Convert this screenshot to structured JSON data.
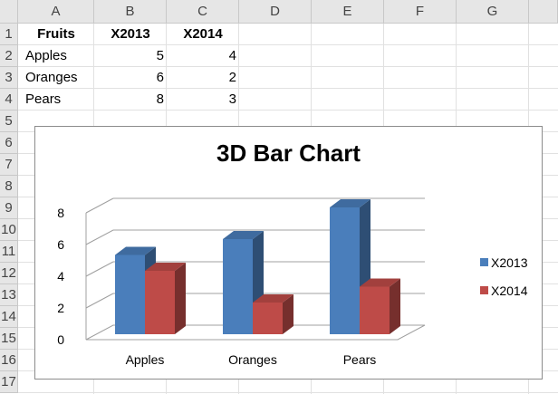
{
  "sheet": {
    "columns": [
      "A",
      "B",
      "C",
      "D",
      "E",
      "F",
      "G"
    ],
    "rows": [
      "1",
      "2",
      "3",
      "4",
      "5",
      "6",
      "7",
      "8",
      "9",
      "10",
      "11",
      "12",
      "13",
      "14",
      "15",
      "16",
      "17"
    ],
    "header": {
      "fruits": "Fruits",
      "x2013": "X2013",
      "x2014": "X2014"
    },
    "data": [
      {
        "fruit": "Apples",
        "x2013": "5",
        "x2014": "4"
      },
      {
        "fruit": "Oranges",
        "x2013": "6",
        "x2014": "2"
      },
      {
        "fruit": "Pears",
        "x2013": "8",
        "x2014": "3"
      }
    ]
  },
  "chart_data": {
    "type": "bar",
    "title": "3D Bar Chart",
    "categories": [
      "Apples",
      "Oranges",
      "Pears"
    ],
    "series": [
      {
        "name": "X2013",
        "values": [
          5,
          6,
          8
        ],
        "color": "#4a7ebb"
      },
      {
        "name": "X2014",
        "values": [
          4,
          2,
          3
        ],
        "color": "#be4b48"
      }
    ],
    "yticks": [
      "0",
      "2",
      "4",
      "6",
      "8"
    ],
    "ylim": [
      0,
      8
    ],
    "xlabel": "",
    "ylabel": "",
    "legend": "right"
  }
}
